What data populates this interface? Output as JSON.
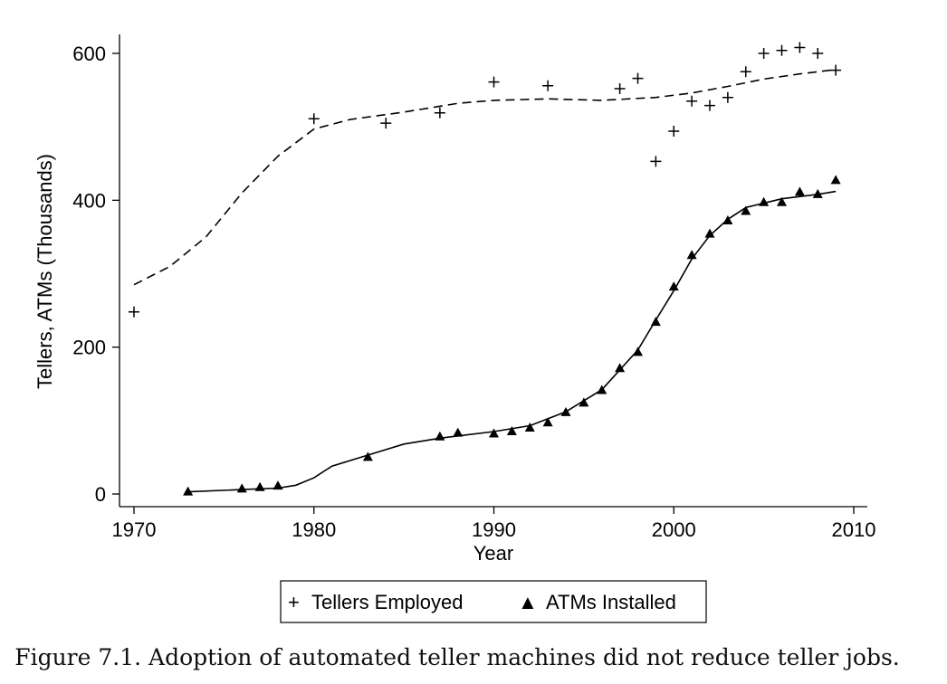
{
  "chart_data": {
    "type": "scatter",
    "xlabel": "Year",
    "ylabel": "Tellers, ATMs (Thousands)",
    "xlim": [
      1970,
      2010
    ],
    "ylim": [
      0,
      600
    ],
    "xticks": [
      1970,
      1980,
      1990,
      2000,
      2010
    ],
    "yticks": [
      0,
      200,
      400,
      600
    ],
    "grid": false,
    "legend_position": "bottom",
    "series": [
      {
        "name": "Tellers Employed",
        "marker": "plus",
        "points": [
          [
            1970,
            248
          ],
          [
            1980,
            511
          ],
          [
            1984,
            505
          ],
          [
            1987,
            519
          ],
          [
            1990,
            561
          ],
          [
            1993,
            556
          ],
          [
            1997,
            552
          ],
          [
            1998,
            566
          ],
          [
            1999,
            453
          ],
          [
            2000,
            494
          ],
          [
            2001,
            535
          ],
          [
            2002,
            529
          ],
          [
            2003,
            540
          ],
          [
            2004,
            575
          ],
          [
            2005,
            600
          ],
          [
            2006,
            604
          ],
          [
            2007,
            608
          ],
          [
            2008,
            600
          ],
          [
            2009,
            577
          ]
        ],
        "fit_style": "dashed",
        "fit": [
          [
            1970,
            285
          ],
          [
            1972,
            310
          ],
          [
            1974,
            350
          ],
          [
            1976,
            410
          ],
          [
            1978,
            460
          ],
          [
            1980,
            497
          ],
          [
            1982,
            510
          ],
          [
            1985,
            520
          ],
          [
            1988,
            532
          ],
          [
            1990,
            536
          ],
          [
            1993,
            538
          ],
          [
            1996,
            536
          ],
          [
            1999,
            540
          ],
          [
            2001,
            546
          ],
          [
            2003,
            555
          ],
          [
            2005,
            565
          ],
          [
            2007,
            572
          ],
          [
            2009,
            578
          ]
        ]
      },
      {
        "name": "ATMs Installed",
        "marker": "triangle",
        "points": [
          [
            1973,
            3
          ],
          [
            1976,
            7
          ],
          [
            1977,
            9
          ],
          [
            1978,
            11
          ],
          [
            1983,
            50
          ],
          [
            1987,
            78
          ],
          [
            1988,
            83
          ],
          [
            1990,
            82
          ],
          [
            1991,
            85
          ],
          [
            1992,
            90
          ],
          [
            1993,
            97
          ],
          [
            1994,
            111
          ],
          [
            1995,
            124
          ],
          [
            1996,
            141
          ],
          [
            1997,
            171
          ],
          [
            1998,
            193
          ],
          [
            1999,
            234
          ],
          [
            2000,
            282
          ],
          [
            2001,
            325
          ],
          [
            2002,
            354
          ],
          [
            2003,
            372
          ],
          [
            2004,
            385
          ],
          [
            2005,
            397
          ],
          [
            2006,
            397
          ],
          [
            2007,
            411
          ],
          [
            2008,
            408
          ],
          [
            2009,
            427
          ]
        ],
        "fit_style": "solid",
        "fit": [
          [
            1973,
            3
          ],
          [
            1976,
            6
          ],
          [
            1978,
            8
          ],
          [
            1979,
            12
          ],
          [
            1980,
            22
          ],
          [
            1981,
            38
          ],
          [
            1983,
            53
          ],
          [
            1985,
            68
          ],
          [
            1987,
            76
          ],
          [
            1990,
            85
          ],
          [
            1992,
            93
          ],
          [
            1994,
            112
          ],
          [
            1996,
            142
          ],
          [
            1998,
            196
          ],
          [
            1999,
            237
          ],
          [
            2000,
            277
          ],
          [
            2001,
            320
          ],
          [
            2002,
            352
          ],
          [
            2003,
            374
          ],
          [
            2004,
            390
          ],
          [
            2006,
            402
          ],
          [
            2008,
            408
          ],
          [
            2009,
            412
          ]
        ]
      }
    ]
  },
  "legend": {
    "items": [
      {
        "symbol": "+",
        "label": "Tellers Employed"
      },
      {
        "symbol": "▲",
        "label": "ATMs Installed"
      }
    ]
  },
  "caption": "Figure 7.1. Adoption of automated teller machines did not reduce teller jobs."
}
